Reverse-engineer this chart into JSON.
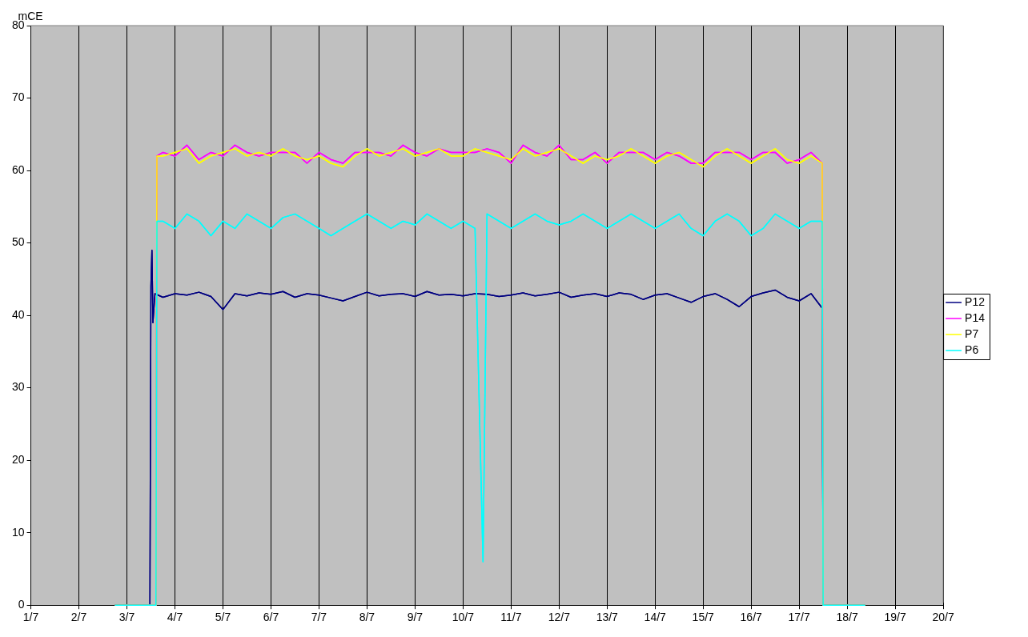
{
  "chart_data": {
    "type": "line",
    "ylabel": "mCE",
    "legend": "right",
    "grid": "x",
    "xlim": [
      "--07-01",
      "--07-20"
    ],
    "xticks": [
      {
        "value": "--07-01",
        "label": "1/7"
      },
      {
        "value": "--07-02",
        "label": "2/7"
      },
      {
        "value": "--07-03",
        "label": "3/7"
      },
      {
        "value": "--07-04",
        "label": "4/7"
      },
      {
        "value": "--07-05",
        "label": "5/7"
      },
      {
        "value": "--07-06",
        "label": "6/7"
      },
      {
        "value": "--07-07",
        "label": "7/7"
      },
      {
        "value": "--07-08",
        "label": "8/7"
      },
      {
        "value": "--07-09",
        "label": "9/7"
      },
      {
        "value": "--07-10",
        "label": "10/7"
      },
      {
        "value": "--07-11",
        "label": "11/7"
      },
      {
        "value": "--07-12",
        "label": "12/7"
      },
      {
        "value": "--07-13",
        "label": "13/7"
      },
      {
        "value": "--07-14",
        "label": "14/7"
      },
      {
        "value": "--07-15",
        "label": "15/7"
      },
      {
        "value": "--07-16",
        "label": "16/7"
      },
      {
        "value": "--07-17",
        "label": "17/7"
      },
      {
        "value": "--07-18",
        "label": "18/7"
      },
      {
        "value": "--07-19",
        "label": "19/7"
      },
      {
        "value": "--07-20",
        "label": "20/7"
      }
    ],
    "ylim": [
      0,
      80
    ],
    "yticks": [
      0,
      10,
      20,
      30,
      40,
      50,
      60,
      70,
      80
    ],
    "series": [
      {
        "name": "P12",
        "color": "#000080",
        "x": [
          "--07-02T18:00",
          "--07-03T11:30",
          "--07-03T12:00",
          "--07-03T12:30",
          "--07-03T13:00",
          "--07-03T14:00",
          "--07-03T18:00",
          "--07-04T00:00",
          "--07-04T06:00",
          "--07-04T12:00",
          "--07-04T18:00",
          "--07-05T00:00",
          "--07-05T06:00",
          "--07-05T12:00",
          "--07-05T18:00",
          "--07-06T00:00",
          "--07-06T06:00",
          "--07-06T12:00",
          "--07-06T18:00",
          "--07-07T00:00",
          "--07-07T06:00",
          "--07-07T12:00",
          "--07-07T18:00",
          "--07-08T00:00",
          "--07-08T06:00",
          "--07-08T12:00",
          "--07-08T18:00",
          "--07-09T00:00",
          "--07-09T06:00",
          "--07-09T12:00",
          "--07-09T18:00",
          "--07-10T00:00",
          "--07-10T06:00",
          "--07-10T12:00",
          "--07-10T18:00",
          "--07-11T00:00",
          "--07-11T06:00",
          "--07-11T12:00",
          "--07-11T18:00",
          "--07-12T00:00",
          "--07-12T06:00",
          "--07-12T12:00",
          "--07-12T18:00",
          "--07-13T00:00",
          "--07-13T06:00",
          "--07-13T12:00",
          "--07-13T18:00",
          "--07-14T00:00",
          "--07-14T06:00",
          "--07-14T12:00",
          "--07-14T18:00",
          "--07-15T00:00",
          "--07-15T06:00",
          "--07-15T12:00",
          "--07-15T18:00",
          "--07-16T00:00",
          "--07-16T06:00",
          "--07-16T12:00",
          "--07-16T18:00",
          "--07-17T00:00",
          "--07-17T06:00",
          "--07-17T11:30",
          "--07-17T12:00",
          "--07-18T09:00"
        ],
        "values": [
          0,
          0,
          44,
          49,
          39,
          43,
          42.5,
          43,
          42.8,
          43.2,
          42.6,
          40.8,
          43,
          42.7,
          43.1,
          42.9,
          43.3,
          42.5,
          43,
          42.8,
          42.4,
          42,
          42.6,
          43.2,
          42.7,
          42.9,
          43,
          42.6,
          43.3,
          42.8,
          42.9,
          42.7,
          43,
          42.9,
          42.6,
          42.8,
          43.1,
          42.7,
          42.9,
          43.2,
          42.5,
          42.8,
          43,
          42.6,
          43.1,
          42.9,
          42.2,
          42.8,
          43,
          42.4,
          41.8,
          42.6,
          43,
          42.2,
          41.2,
          42.6,
          43.1,
          43.5,
          42.5,
          42,
          43,
          41,
          0,
          0
        ]
      },
      {
        "name": "P14",
        "color": "#ff00ff",
        "x": [
          "--07-02T18:00",
          "--07-03T14:30",
          "--07-03T15:00",
          "--07-03T18:00",
          "--07-04T00:00",
          "--07-04T06:00",
          "--07-04T12:00",
          "--07-04T18:00",
          "--07-05T00:00",
          "--07-05T06:00",
          "--07-05T12:00",
          "--07-05T18:00",
          "--07-06T00:00",
          "--07-06T06:00",
          "--07-06T12:00",
          "--07-06T18:00",
          "--07-07T00:00",
          "--07-07T06:00",
          "--07-07T12:00",
          "--07-07T18:00",
          "--07-08T00:00",
          "--07-08T06:00",
          "--07-08T12:00",
          "--07-08T18:00",
          "--07-09T00:00",
          "--07-09T06:00",
          "--07-09T12:00",
          "--07-09T18:00",
          "--07-10T00:00",
          "--07-10T06:00",
          "--07-10T12:00",
          "--07-10T18:00",
          "--07-11T00:00",
          "--07-11T06:00",
          "--07-11T12:00",
          "--07-11T18:00",
          "--07-12T00:00",
          "--07-12T06:00",
          "--07-12T12:00",
          "--07-12T18:00",
          "--07-13T00:00",
          "--07-13T06:00",
          "--07-13T12:00",
          "--07-13T18:00",
          "--07-14T00:00",
          "--07-14T06:00",
          "--07-14T12:00",
          "--07-14T18:00",
          "--07-15T00:00",
          "--07-15T06:00",
          "--07-15T12:00",
          "--07-15T18:00",
          "--07-16T00:00",
          "--07-16T06:00",
          "--07-16T12:00",
          "--07-16T18:00",
          "--07-17T00:00",
          "--07-17T06:00",
          "--07-17T11:30",
          "--07-17T12:00",
          "--07-18T09:00"
        ],
        "values": [
          0,
          0,
          62,
          62.5,
          62,
          63.5,
          61.5,
          62.5,
          62,
          63.5,
          62.5,
          62,
          62.5,
          62.5,
          62.5,
          61,
          62.5,
          61.5,
          61,
          62.5,
          62.5,
          62.5,
          62,
          63.5,
          62.5,
          62,
          63,
          62.5,
          62.5,
          62.5,
          63,
          62.5,
          61,
          63.5,
          62.5,
          62,
          63.5,
          61.5,
          61.5,
          62.5,
          61,
          62.5,
          62.5,
          62.5,
          61.5,
          62.5,
          62,
          61,
          61,
          62.5,
          62.5,
          62.5,
          61.5,
          62.5,
          62.5,
          61,
          61.5,
          62.5,
          61,
          0,
          0
        ]
      },
      {
        "name": "P7",
        "color": "#ffff00",
        "x": [
          "--07-02T18:00",
          "--07-03T14:30",
          "--07-03T15:00",
          "--07-03T18:00",
          "--07-04T00:00",
          "--07-04T06:00",
          "--07-04T12:00",
          "--07-04T18:00",
          "--07-05T00:00",
          "--07-05T06:00",
          "--07-05T12:00",
          "--07-05T18:00",
          "--07-06T00:00",
          "--07-06T06:00",
          "--07-06T12:00",
          "--07-06T18:00",
          "--07-07T00:00",
          "--07-07T06:00",
          "--07-07T12:00",
          "--07-07T18:00",
          "--07-08T00:00",
          "--07-08T06:00",
          "--07-08T12:00",
          "--07-08T18:00",
          "--07-09T00:00",
          "--07-09T06:00",
          "--07-09T12:00",
          "--07-09T18:00",
          "--07-10T00:00",
          "--07-10T06:00",
          "--07-10T12:00",
          "--07-10T18:00",
          "--07-11T00:00",
          "--07-11T06:00",
          "--07-11T12:00",
          "--07-11T18:00",
          "--07-12T00:00",
          "--07-12T06:00",
          "--07-12T12:00",
          "--07-12T18:00",
          "--07-13T00:00",
          "--07-13T06:00",
          "--07-13T12:00",
          "--07-13T18:00",
          "--07-14T00:00",
          "--07-14T06:00",
          "--07-14T12:00",
          "--07-14T18:00",
          "--07-15T00:00",
          "--07-15T06:00",
          "--07-15T12:00",
          "--07-15T18:00",
          "--07-16T00:00",
          "--07-16T06:00",
          "--07-16T12:00",
          "--07-16T18:00",
          "--07-17T00:00",
          "--07-17T06:00",
          "--07-17T11:30",
          "--07-17T12:00",
          "--07-18T09:00"
        ],
        "values": [
          0,
          0,
          62,
          62,
          62.5,
          63,
          61,
          62,
          62.5,
          63,
          62,
          62.5,
          62,
          63,
          62,
          61.5,
          62,
          61,
          60.5,
          62,
          63,
          62,
          62.5,
          63,
          62,
          62.5,
          63,
          62,
          62,
          63,
          62.5,
          62,
          61.5,
          63,
          62,
          62.5,
          63,
          62,
          61,
          62,
          61.5,
          62,
          63,
          62,
          61,
          62,
          62.5,
          61.5,
          60.5,
          62,
          63,
          62,
          61,
          62,
          63,
          61.5,
          61,
          62,
          61,
          0,
          0
        ]
      },
      {
        "name": "P6",
        "color": "#00ffff",
        "x": [
          "--07-02T18:00",
          "--07-03T14:30",
          "--07-03T15:00",
          "--07-03T18:00",
          "--07-04T00:00",
          "--07-04T06:00",
          "--07-04T12:00",
          "--07-04T18:00",
          "--07-05T00:00",
          "--07-05T06:00",
          "--07-05T12:00",
          "--07-05T18:00",
          "--07-06T00:00",
          "--07-06T06:00",
          "--07-06T12:00",
          "--07-06T18:00",
          "--07-07T00:00",
          "--07-07T06:00",
          "--07-07T12:00",
          "--07-07T18:00",
          "--07-08T00:00",
          "--07-08T06:00",
          "--07-08T12:00",
          "--07-08T18:00",
          "--07-09T00:00",
          "--07-09T06:00",
          "--07-09T12:00",
          "--07-09T18:00",
          "--07-10T00:00",
          "--07-10T06:00",
          "--07-10T10:00",
          "--07-10T12:00",
          "--07-10T18:00",
          "--07-11T00:00",
          "--07-11T06:00",
          "--07-11T12:00",
          "--07-11T18:00",
          "--07-12T00:00",
          "--07-12T06:00",
          "--07-12T12:00",
          "--07-12T18:00",
          "--07-13T00:00",
          "--07-13T06:00",
          "--07-13T12:00",
          "--07-13T18:00",
          "--07-14T00:00",
          "--07-14T06:00",
          "--07-14T12:00",
          "--07-14T18:00",
          "--07-15T00:00",
          "--07-15T06:00",
          "--07-15T12:00",
          "--07-15T18:00",
          "--07-16T00:00",
          "--07-16T06:00",
          "--07-16T12:00",
          "--07-16T18:00",
          "--07-17T00:00",
          "--07-17T06:00",
          "--07-17T11:30",
          "--07-17T12:00",
          "--07-18T09:00"
        ],
        "values": [
          0,
          0,
          53,
          53,
          52,
          54,
          53,
          51,
          53,
          52,
          54,
          53,
          52,
          53.5,
          54,
          53,
          52,
          51,
          52,
          53,
          54,
          53,
          52,
          53,
          52.5,
          54,
          53,
          52,
          53,
          52,
          6,
          54,
          53,
          52,
          53,
          54,
          53,
          52.5,
          53,
          54,
          53,
          52,
          53,
          54,
          53,
          52,
          53,
          54,
          52,
          51,
          53,
          54,
          53,
          51,
          52,
          54,
          53,
          52,
          53,
          53,
          0,
          0
        ]
      }
    ]
  }
}
